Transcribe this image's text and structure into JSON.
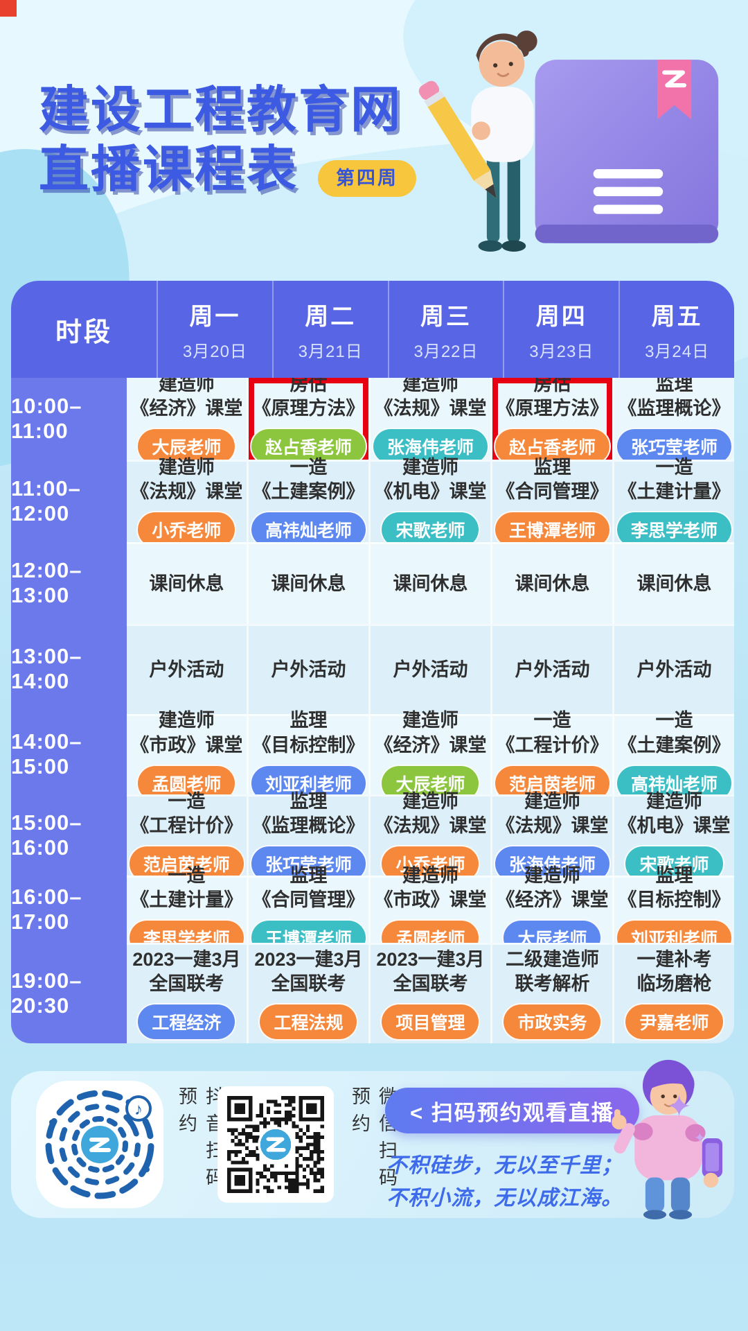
{
  "page": {
    "title_line1": "建设工程教育网",
    "title_line2": "直播课程表",
    "week_badge": "第四周"
  },
  "icons": {
    "music_note": "♪",
    "sparkle_large": "✦",
    "sparkle_small": "✦"
  },
  "colors": {
    "page_bg": "#BFE7F7",
    "title_blue": "#3C5BE2",
    "week_badge_bg": "#F8C63D",
    "week_badge_text": "#3555D6",
    "table_header_bg": "#5866E6",
    "time_column_bg": "#6B79EB",
    "row_light": "#EAF8FD",
    "row_dark": "#DDF0F9",
    "highlight_border": "#E60012",
    "badges": {
      "orange": "#F6883C",
      "green": "#8CC63F",
      "teal": "#3CBEC5",
      "blue": "#5C88F0"
    },
    "cta_gradient_start": "#5F7BF0",
    "cta_gradient_end": "#8A66EC",
    "quote_text": "#3E6BEA"
  },
  "schedule": {
    "time_label": "时段",
    "days": [
      {
        "name": "周一",
        "date": "3月20日"
      },
      {
        "name": "周二",
        "date": "3月21日"
      },
      {
        "name": "周三",
        "date": "3月22日"
      },
      {
        "name": "周四",
        "date": "3月23日"
      },
      {
        "name": "周五",
        "date": "3月24日"
      }
    ],
    "rows": [
      {
        "time": "10:00–11:00",
        "cells": [
          {
            "title": "建造师\n《经济》课堂",
            "badge": "大辰老师",
            "color": "orange"
          },
          {
            "title": "房估\n《原理方法》",
            "badge": "赵占香老师",
            "color": "green",
            "highlight": true
          },
          {
            "title": "建造师\n《法规》课堂",
            "badge": "张海伟老师",
            "color": "teal"
          },
          {
            "title": "房估\n《原理方法》",
            "badge": "赵占香老师",
            "color": "orange",
            "highlight": true
          },
          {
            "title": "监理\n《监理概论》",
            "badge": "张巧莹老师",
            "color": "blue"
          }
        ]
      },
      {
        "time": "11:00–12:00",
        "cells": [
          {
            "title": "建造师\n《法规》课堂",
            "badge": "小乔老师",
            "color": "orange"
          },
          {
            "title": "一造\n《土建案例》",
            "badge": "高祎灿老师",
            "color": "blue"
          },
          {
            "title": "建造师\n《机电》课堂",
            "badge": "宋歌老师",
            "color": "teal"
          },
          {
            "title": "监理\n《合同管理》",
            "badge": "王博潭老师",
            "color": "orange"
          },
          {
            "title": "一造\n《土建计量》",
            "badge": "李思学老师",
            "color": "teal"
          }
        ]
      },
      {
        "time": "12:00–13:00",
        "cells": [
          {
            "title": "课间休息"
          },
          {
            "title": "课间休息"
          },
          {
            "title": "课间休息"
          },
          {
            "title": "课间休息"
          },
          {
            "title": "课间休息"
          }
        ]
      },
      {
        "time": "13:00–14:00",
        "cells": [
          {
            "title": "户外活动"
          },
          {
            "title": "户外活动"
          },
          {
            "title": "户外活动"
          },
          {
            "title": "户外活动"
          },
          {
            "title": "户外活动"
          }
        ]
      },
      {
        "time": "14:00–15:00",
        "cells": [
          {
            "title": "建造师\n《市政》课堂",
            "badge": "孟圆老师",
            "color": "orange"
          },
          {
            "title": "监理\n《目标控制》",
            "badge": "刘亚利老师",
            "color": "blue"
          },
          {
            "title": "建造师\n《经济》课堂",
            "badge": "大辰老师",
            "color": "green"
          },
          {
            "title": "一造\n《工程计价》",
            "badge": "范启茵老师",
            "color": "orange"
          },
          {
            "title": "一造\n《土建案例》",
            "badge": "高祎灿老师",
            "color": "teal"
          }
        ]
      },
      {
        "time": "15:00–16:00",
        "cells": [
          {
            "title": "一造\n《工程计价》",
            "badge": "范启茵老师",
            "color": "orange"
          },
          {
            "title": "监理\n《监理概论》",
            "badge": "张巧莹老师",
            "color": "blue"
          },
          {
            "title": "建造师\n《法规》课堂",
            "badge": "小乔老师",
            "color": "orange"
          },
          {
            "title": "建造师\n《法规》课堂",
            "badge": "张海伟老师",
            "color": "blue"
          },
          {
            "title": "建造师\n《机电》课堂",
            "badge": "宋歌老师",
            "color": "teal"
          }
        ]
      },
      {
        "time": "16:00–17:00",
        "cells": [
          {
            "title": "一造\n《土建计量》",
            "badge": "李思学老师",
            "color": "orange"
          },
          {
            "title": "监理\n《合同管理》",
            "badge": "王博潭老师",
            "color": "teal"
          },
          {
            "title": "建造师\n《市政》课堂",
            "badge": "孟圆老师",
            "color": "orange"
          },
          {
            "title": "建造师\n《经济》课堂",
            "badge": "大辰老师",
            "color": "blue"
          },
          {
            "title": "监理\n《目标控制》",
            "badge": "刘亚利老师",
            "color": "orange"
          }
        ]
      },
      {
        "time": "19:00–20:30",
        "cells": [
          {
            "title": "2023一建3月\n全国联考",
            "badge": "工程经济",
            "color": "blue"
          },
          {
            "title": "2023一建3月\n全国联考",
            "badge": "工程法规",
            "color": "orange"
          },
          {
            "title": "2023一建3月\n全国联考",
            "badge": "项目管理",
            "color": "orange"
          },
          {
            "title": "二级建造师\n联考解析",
            "badge": "市政实务",
            "color": "orange"
          },
          {
            "title": "一建补考\n临场磨枪",
            "badge": "尹嘉老师",
            "color": "orange"
          }
        ]
      }
    ]
  },
  "footer": {
    "douyin_label": "抖音扫码预约",
    "wechat_label": "微信扫码预约",
    "cta_label": "< 扫码预约观看直播",
    "quote_line1": "不积硅步，无以至千里；",
    "quote_line2": "不积小流，无以成江海。"
  }
}
